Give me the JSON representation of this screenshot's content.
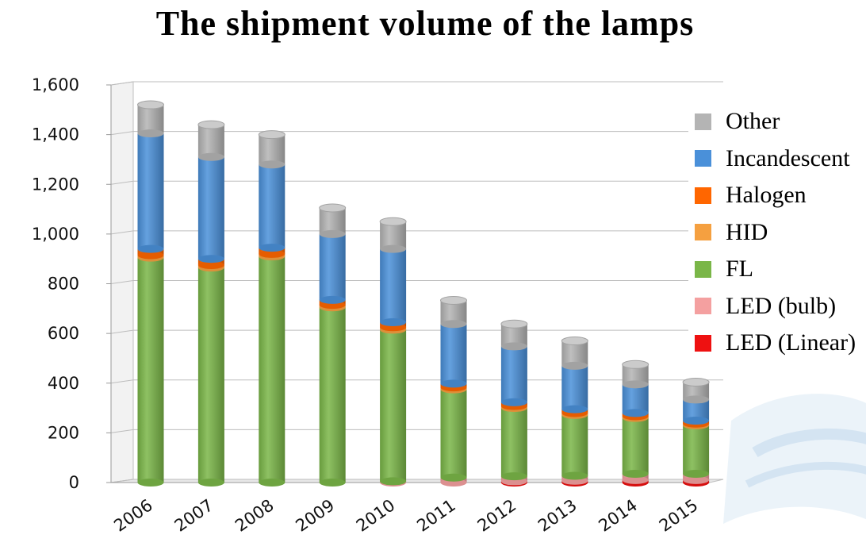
{
  "chart_data": {
    "type": "bar",
    "stacked": true,
    "title": "The shipment volume of the lamps",
    "xlabel": "",
    "ylabel": "",
    "ylim": [
      0,
      1600
    ],
    "yticks": [
      0,
      200,
      400,
      600,
      800,
      1000,
      1200,
      1400,
      1600
    ],
    "ytick_labels": [
      "0",
      "200",
      "400",
      "600",
      "800",
      "1,000",
      "1,200",
      "1,400",
      "1,600"
    ],
    "categories": [
      "2006",
      "2007",
      "2008",
      "2009",
      "2010",
      "2011",
      "2012",
      "2013",
      "2014",
      "2015"
    ],
    "legend_position": "right",
    "grid": true,
    "series": [
      {
        "name": "LED (Linear)",
        "color": "#ee1111",
        "values": [
          0,
          0,
          0,
          0,
          0,
          0,
          5,
          7,
          10,
          10
        ]
      },
      {
        "name": "LED (bulb)",
        "color": "#f4a0a0",
        "values": [
          0,
          0,
          0,
          0,
          5,
          20,
          20,
          20,
          25,
          25
        ]
      },
      {
        "name": "FL",
        "color": "#7ab648",
        "values": [
          905,
          865,
          910,
          705,
          610,
          355,
          275,
          245,
          225,
          195
        ]
      },
      {
        "name": "HID",
        "color": "#f5a040",
        "values": [
          10,
          10,
          10,
          10,
          10,
          8,
          8,
          8,
          7,
          7
        ]
      },
      {
        "name": "Halogen",
        "color": "#ff6600",
        "values": [
          25,
          25,
          25,
          20,
          20,
          15,
          15,
          15,
          13,
          12
        ]
      },
      {
        "name": "Incandescent",
        "color": "#4a90d9",
        "values": [
          465,
          410,
          335,
          265,
          295,
          240,
          225,
          175,
          115,
          85
        ]
      },
      {
        "name": "Other",
        "color": "#b4b4b4",
        "values": [
          115,
          130,
          120,
          105,
          110,
          95,
          90,
          100,
          80,
          70
        ]
      }
    ]
  },
  "legend": {
    "items": [
      {
        "label": "Other",
        "color": "#b4b4b4"
      },
      {
        "label": "Incandescent",
        "color": "#4a90d9"
      },
      {
        "label": "Halogen",
        "color": "#ff6600"
      },
      {
        "label": "HID",
        "color": "#f5a040"
      },
      {
        "label": "FL",
        "color": "#7ab648"
      },
      {
        "label": "LED (bulb)",
        "color": "#f4a0a0"
      },
      {
        "label": "LED (Linear)",
        "color": "#ee1111"
      }
    ]
  }
}
